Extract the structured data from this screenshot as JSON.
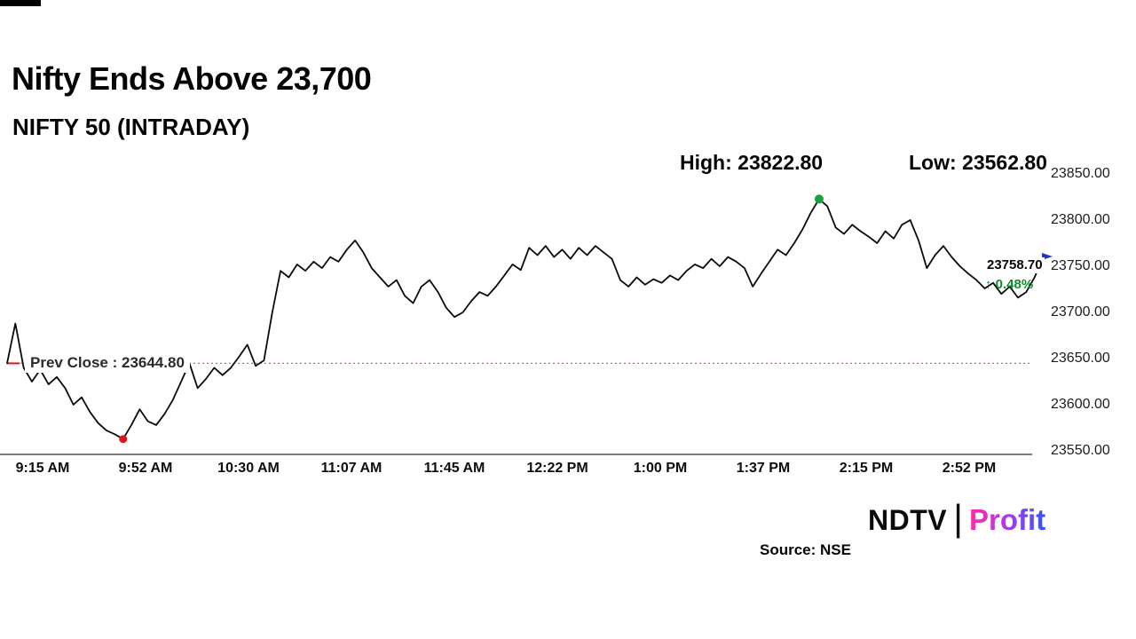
{
  "header": {
    "title": "Nifty Ends Above 23,700",
    "subtitle": "NIFTY 50 (INTRADAY)",
    "high_label": "High: 23822.80",
    "low_label": "Low: 23562.80"
  },
  "chart_data": {
    "type": "line",
    "title": "NIFTY 50 (INTRADAY)",
    "x_tick_labels": [
      "9:15 AM",
      "9:52 AM",
      "10:30 AM",
      "11:07 AM",
      "11:45 AM",
      "12:22 PM",
      "1:00 PM",
      "1:37 PM",
      "2:15 PM",
      "2:52 PM"
    ],
    "y_tick_labels": [
      "23850.00",
      "23800.00",
      "23750.00",
      "23700.00",
      "23650.00",
      "23600.00",
      "23550.00"
    ],
    "ylim": [
      23550,
      23850
    ],
    "grid": "off",
    "legend": "none",
    "prev_close": 23644.8,
    "prev_close_label": "Prev Close : 23644.80",
    "high": 23822.8,
    "low": 23562.8,
    "last": 23758.7,
    "last_label": "23758.70",
    "change_arrow": "↑",
    "change_pct_label": "0.48%",
    "line_color": "#0a0a0a",
    "prev_close_color": "#e06060",
    "high_marker_color": "#1ca23c",
    "low_marker_color": "#e01616",
    "last_marker_color": "#2233cc",
    "change_color": "#0a8f2a",
    "values": [
      23645,
      23688,
      23640,
      23625,
      23638,
      23622,
      23630,
      23618,
      23600,
      23608,
      23592,
      23580,
      23572,
      23568,
      23562.8,
      23578,
      23595,
      23582,
      23578,
      23590,
      23605,
      23625,
      23645,
      23618,
      23628,
      23640,
      23632,
      23640,
      23652,
      23665,
      23642,
      23648,
      23700,
      23745,
      23738,
      23752,
      23745,
      23755,
      23748,
      23760,
      23755,
      23768,
      23778,
      23765,
      23748,
      23738,
      23728,
      23735,
      23718,
      23710,
      23728,
      23735,
      23722,
      23705,
      23695,
      23700,
      23712,
      23722,
      23718,
      23728,
      23740,
      23752,
      23746,
      23770,
      23762,
      23772,
      23760,
      23768,
      23758,
      23770,
      23762,
      23772,
      23765,
      23758,
      23735,
      23728,
      23738,
      23730,
      23736,
      23732,
      23740,
      23735,
      23745,
      23752,
      23748,
      23758,
      23750,
      23760,
      23755,
      23748,
      23728,
      23742,
      23755,
      23768,
      23762,
      23775,
      23790,
      23808,
      23822.8,
      23815,
      23792,
      23785,
      23795,
      23788,
      23782,
      23775,
      23788,
      23780,
      23795,
      23800,
      23778,
      23748,
      23762,
      23772,
      23760,
      23750,
      23742,
      23735,
      23726,
      23732,
      23720,
      23728,
      23716,
      23722,
      23738,
      23758.7
    ]
  },
  "footer": {
    "source": "Source: NSE",
    "logo": {
      "ndtv": "NDTV",
      "separator": "|",
      "profit": "Profit"
    }
  }
}
